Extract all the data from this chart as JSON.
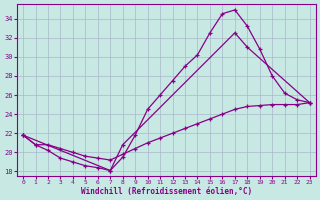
{
  "xlabel": "Windchill (Refroidissement éolien,°C)",
  "bg_color": "#c8e8e4",
  "line_color": "#880088",
  "grid_color": "#a8b8c8",
  "line1_x": [
    0,
    1,
    2,
    3,
    4,
    5,
    6,
    7,
    8,
    9,
    10,
    11,
    12,
    13,
    14,
    15,
    16,
    17,
    18,
    19,
    20,
    21,
    22,
    23
  ],
  "line1_y": [
    21.8,
    20.8,
    20.2,
    19.4,
    19.0,
    18.6,
    18.4,
    18.1,
    19.5,
    21.8,
    24.5,
    26.0,
    27.5,
    29.0,
    30.2,
    32.5,
    34.5,
    34.9,
    33.2,
    30.8,
    28.0,
    26.2,
    25.5,
    25.2
  ],
  "line2_x": [
    0,
    7,
    8,
    17,
    18,
    23
  ],
  "line2_y": [
    21.8,
    18.1,
    20.8,
    32.5,
    31.0,
    25.2
  ],
  "line3_x": [
    0,
    1,
    2,
    3,
    4,
    5,
    6,
    7,
    8,
    9,
    10,
    11,
    12,
    13,
    14,
    15,
    16,
    17,
    18,
    19,
    20,
    21,
    22,
    23
  ],
  "line3_y": [
    21.8,
    20.8,
    20.8,
    20.4,
    20.0,
    19.6,
    19.4,
    19.2,
    19.8,
    20.4,
    21.0,
    21.5,
    22.0,
    22.5,
    23.0,
    23.5,
    24.0,
    24.5,
    24.8,
    24.9,
    25.0,
    25.0,
    25.0,
    25.2
  ],
  "ylim": [
    17.5,
    35.5
  ],
  "xlim": [
    -0.5,
    23.5
  ],
  "yticks": [
    18,
    20,
    22,
    24,
    26,
    28,
    30,
    32,
    34
  ],
  "xticks": [
    0,
    1,
    2,
    3,
    4,
    5,
    6,
    7,
    8,
    9,
    10,
    11,
    12,
    13,
    14,
    15,
    16,
    17,
    18,
    19,
    20,
    21,
    22,
    23
  ]
}
